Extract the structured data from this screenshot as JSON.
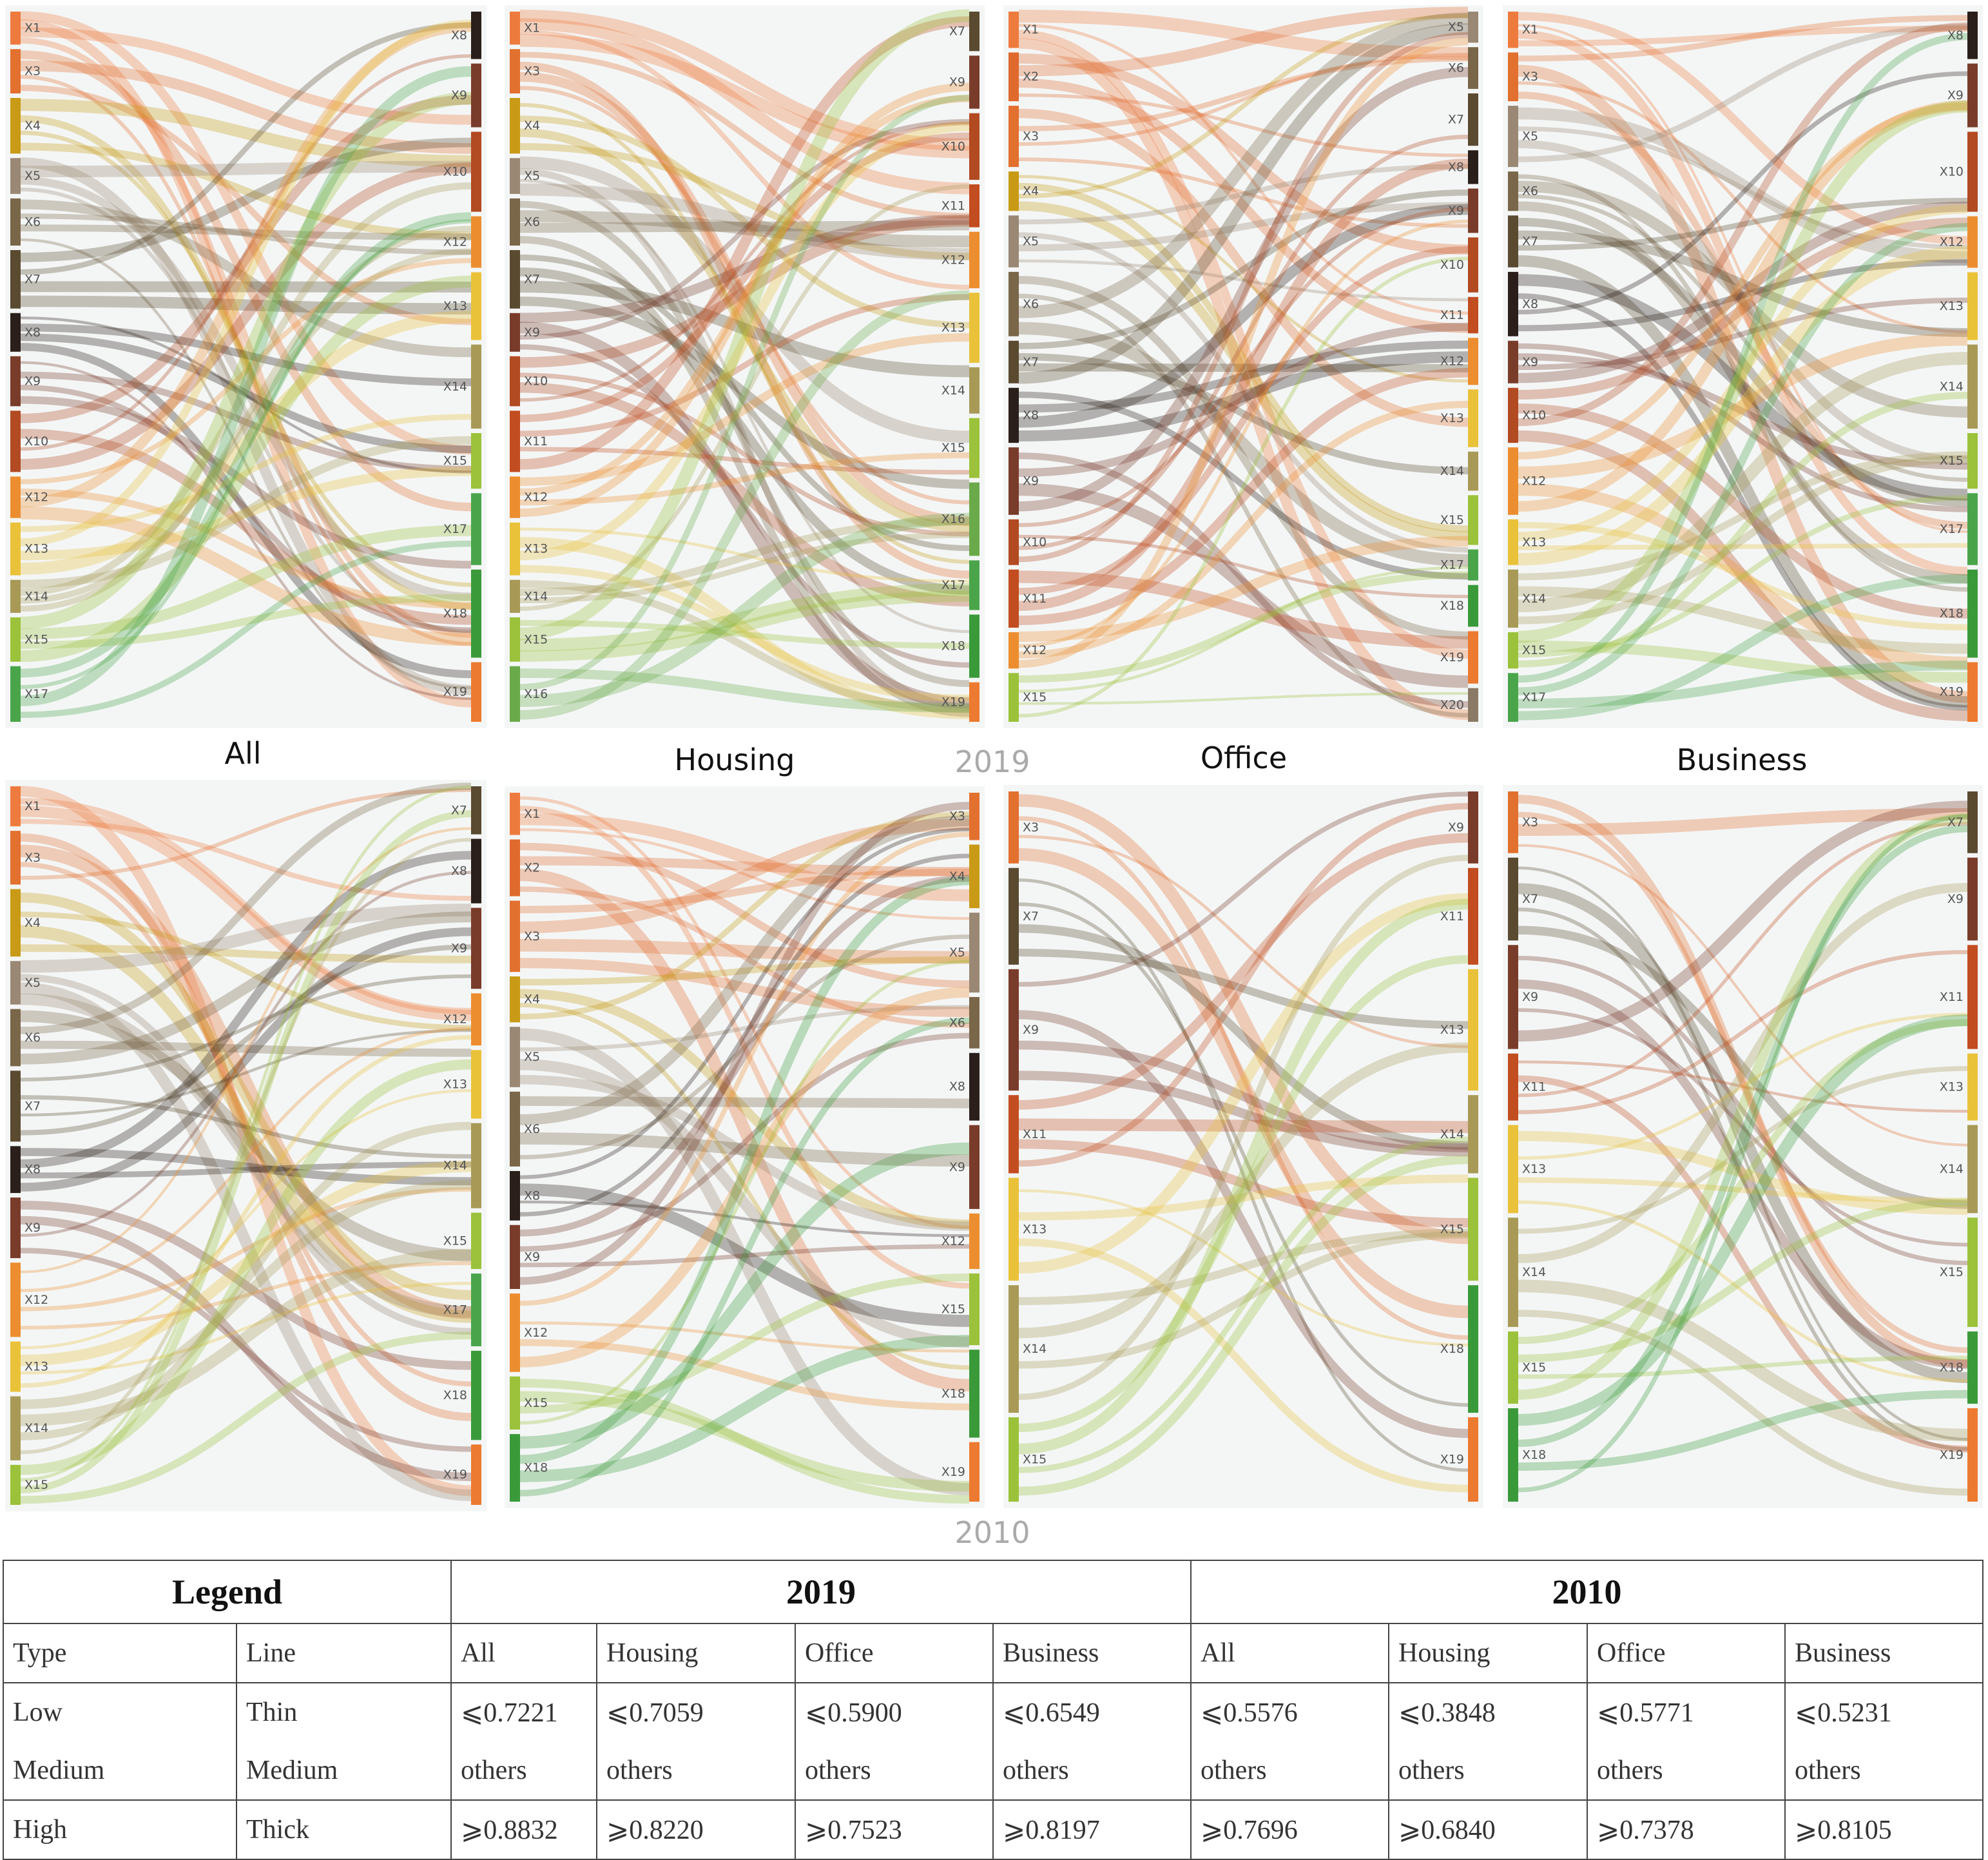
{
  "years": {
    "top": "2019",
    "bottom": "2010"
  },
  "panels": [
    {
      "id": "all-2019",
      "title": "All",
      "year": "2019",
      "left": [
        "X1",
        "X3",
        "X4",
        "X5",
        "X6",
        "X7",
        "X8",
        "X9",
        "X10",
        "X12",
        "X13",
        "X14",
        "X15",
        "X17"
      ],
      "right": [
        "X8",
        "X9",
        "X10",
        "X12",
        "X13",
        "X14",
        "X15",
        "X17",
        "X18",
        "X19"
      ]
    },
    {
      "id": "housing-2019",
      "title": "Housing",
      "year": "2019",
      "left": [
        "X1",
        "X3",
        "X4",
        "X5",
        "X6",
        "X7",
        "X9",
        "X10",
        "X11",
        "X12",
        "X13",
        "X14",
        "X15",
        "X16"
      ],
      "right": [
        "X7",
        "X9",
        "X10",
        "X11",
        "X12",
        "X13",
        "X14",
        "X15",
        "X16",
        "X17",
        "X18",
        "X19"
      ]
    },
    {
      "id": "office-2019",
      "title": "Office",
      "year": "2019",
      "left": [
        "X1",
        "X2",
        "X3",
        "X4",
        "X5",
        "X6",
        "X7",
        "X8",
        "X9",
        "X10",
        "X11",
        "X12",
        "X15"
      ],
      "right": [
        "X5",
        "X6",
        "X7",
        "X8",
        "X9",
        "X10",
        "X11",
        "X12",
        "X13",
        "X14",
        "X15",
        "X17",
        "X18",
        "X19",
        "X20"
      ]
    },
    {
      "id": "business-2019",
      "title": "Business",
      "year": "2019",
      "left": [
        "X1",
        "X3",
        "X5",
        "X6",
        "X7",
        "X8",
        "X9",
        "X10",
        "X12",
        "X13",
        "X14",
        "X15",
        "X17"
      ],
      "right": [
        "X8",
        "X9",
        "X10",
        "X12",
        "X13",
        "X14",
        "X15",
        "X17",
        "X18",
        "X19"
      ]
    },
    {
      "id": "all-2010",
      "title": "All",
      "year": "2010",
      "left": [
        "X1",
        "X3",
        "X4",
        "X5",
        "X6",
        "X7",
        "X8",
        "X9",
        "X12",
        "X13",
        "X14",
        "X15"
      ],
      "right": [
        "X7",
        "X8",
        "X9",
        "X12",
        "X13",
        "X14",
        "X15",
        "X17",
        "X18",
        "X19"
      ]
    },
    {
      "id": "housing-2010",
      "title": "Housing",
      "year": "2010",
      "left": [
        "X1",
        "X2",
        "X3",
        "X4",
        "X5",
        "X6",
        "X8",
        "X9",
        "X12",
        "X15",
        "X18"
      ],
      "right": [
        "X3",
        "X4",
        "X5",
        "X6",
        "X8",
        "X9",
        "X12",
        "X15",
        "X18",
        "X19"
      ]
    },
    {
      "id": "office-2010",
      "title": "Office",
      "year": "2010",
      "left": [
        "X3",
        "X7",
        "X9",
        "X11",
        "X13",
        "X14",
        "X15"
      ],
      "right": [
        "X9",
        "X11",
        "X13",
        "X14",
        "X15",
        "X18",
        "X19"
      ]
    },
    {
      "id": "business-2010",
      "title": "Business",
      "year": "2010",
      "left": [
        "X3",
        "X7",
        "X9",
        "X11",
        "X13",
        "X14",
        "X15",
        "X18"
      ],
      "right": [
        "X7",
        "X9",
        "X11",
        "X13",
        "X14",
        "X15",
        "X18",
        "X19"
      ]
    }
  ],
  "legend": {
    "header": {
      "legend": "Legend",
      "year1": "2019",
      "year2": "2010"
    },
    "subheader": [
      "Type",
      "Line",
      "All",
      "Housing",
      "Office",
      "Business",
      "All",
      "Housing",
      "Office",
      "Business"
    ],
    "rows": [
      [
        "Low",
        "Thin",
        "⩽0.7221",
        "⩽0.7059",
        "⩽0.5900",
        "⩽0.6549",
        "⩽0.5576",
        "⩽0.3848",
        "⩽0.5771",
        "⩽0.5231"
      ],
      [
        "Medium",
        "Medium",
        "others",
        "others",
        "others",
        "others",
        "others",
        "others",
        "others",
        "others"
      ],
      [
        "High",
        "Thick",
        "⩾0.8832",
        "⩾0.8220",
        "⩾0.7523",
        "⩾0.8197",
        "⩾0.7696",
        "⩾0.6840",
        "⩾0.7378",
        "⩾0.8105"
      ]
    ]
  },
  "node_colors": {
    "X1": "#ee7b3e",
    "X2": "#e06a2e",
    "X3": "#e2702f",
    "X4": "#c89a16",
    "X5": "#9a8874",
    "X6": "#7a6648",
    "X7": "#5a4a30",
    "X8": "#2a1f1a",
    "X9": "#7a3c2a",
    "X10": "#b24a22",
    "X11": "#c24d20",
    "X12": "#ec8e2f",
    "X13": "#eac23a",
    "X14": "#a89a56",
    "X15": "#9bc23a",
    "X16": "#6aaa4a",
    "X17": "#4aa54a",
    "X18": "#3a9a3a",
    "X19": "#ec7a30",
    "X20": "#8a7a66"
  }
}
